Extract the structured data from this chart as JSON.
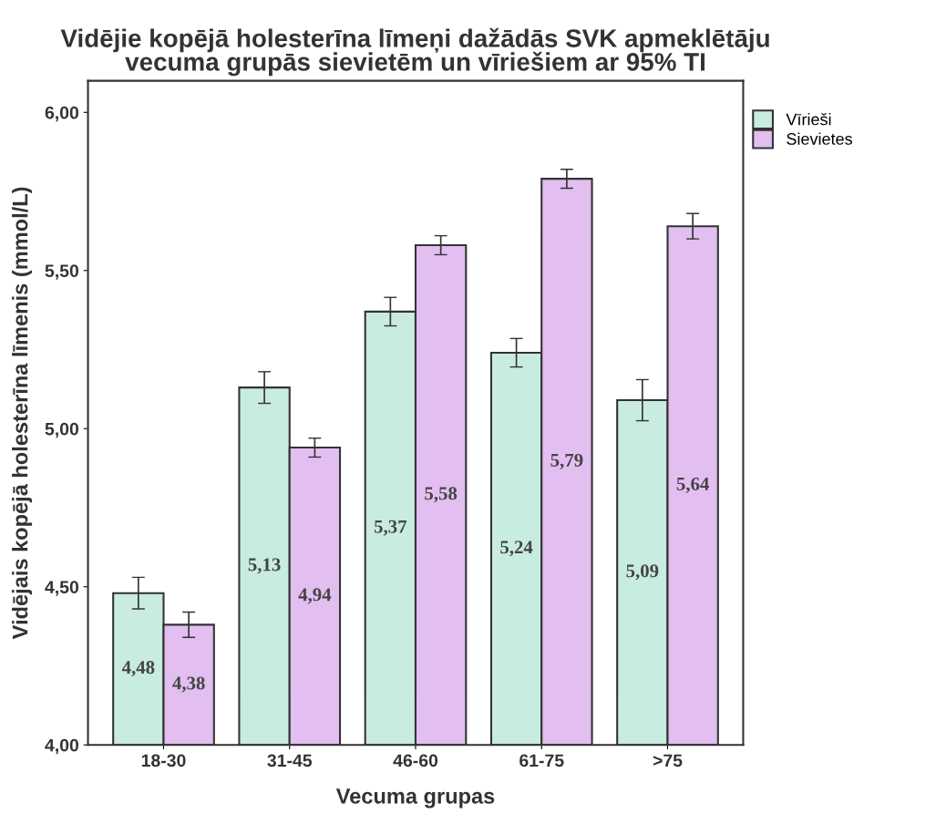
{
  "chart_data": {
    "type": "bar",
    "title": "Vidējie kopējā holesterīna līmeņi dažādās SVK apmeklētāju\nvecuma grupās sievietēm un vīriešiem ar 95% TI",
    "xlabel": "Vecuma grupas",
    "ylabel": "Vidējais kopējā holesterīna līmenis (mmol/L)",
    "categories": [
      "18-30",
      "31-45",
      "46-60",
      "61-75",
      ">75"
    ],
    "series": [
      {
        "name": "Vīrieši",
        "color": "#c8ecdf",
        "values": [
          4.48,
          5.13,
          5.37,
          5.24,
          5.09
        ],
        "value_labels": [
          "4,48",
          "5,13",
          "5,37",
          "5,24",
          "5,09"
        ],
        "errors": [
          0.05,
          0.05,
          0.045,
          0.045,
          0.065
        ]
      },
      {
        "name": "Sievietes",
        "color": "#e2bff0",
        "values": [
          4.38,
          4.94,
          5.58,
          5.79,
          5.64
        ],
        "value_labels": [
          "4,38",
          "4,94",
          "5,58",
          "5,79",
          "5,64"
        ],
        "errors": [
          0.04,
          0.03,
          0.03,
          0.03,
          0.04
        ]
      }
    ],
    "ylim": [
      4.0,
      6.1
    ],
    "yticks": [
      {
        "value": 4.0,
        "label": "4,00"
      },
      {
        "value": 4.5,
        "label": "4,50"
      },
      {
        "value": 5.0,
        "label": "5,00"
      },
      {
        "value": 5.5,
        "label": "5,50"
      },
      {
        "value": 6.0,
        "label": "6,00"
      }
    ],
    "legend": "top right",
    "grid": false
  }
}
